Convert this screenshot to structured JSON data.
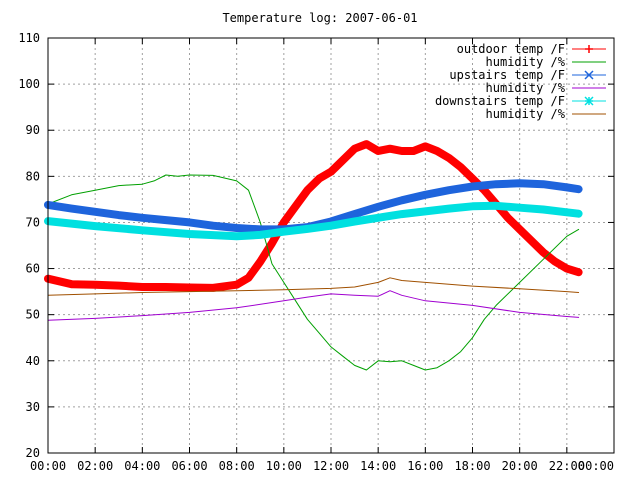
{
  "chart_data": {
    "type": "line",
    "title": "Temperature log: 2007-06-01",
    "xlabel": "",
    "ylabel": "",
    "xlim": [
      "00:00",
      "24:00"
    ],
    "ylim": [
      20,
      110
    ],
    "x_ticks": [
      "00:00",
      "02:00",
      "04:00",
      "06:00",
      "08:00",
      "10:00",
      "12:00",
      "14:00",
      "16:00",
      "18:00",
      "20:00",
      "22:00",
      "00:00"
    ],
    "y_ticks": [
      "20",
      "30",
      "40",
      "50",
      "60",
      "70",
      "80",
      "90",
      "100",
      "110"
    ],
    "grid": true,
    "legend_position": "top-right",
    "series": [
      {
        "name": "outdoor temp /F",
        "color": "#ff0000",
        "marker": "plus",
        "x": [
          "00:00",
          "01:00",
          "02:00",
          "03:00",
          "04:00",
          "05:00",
          "06:00",
          "07:00",
          "08:00",
          "08:30",
          "09:00",
          "09:30",
          "10:00",
          "10:30",
          "11:00",
          "11:30",
          "12:00",
          "12:30",
          "13:00",
          "13:30",
          "14:00",
          "14:30",
          "15:00",
          "15:30",
          "16:00",
          "16:30",
          "17:00",
          "17:30",
          "18:00",
          "18:30",
          "19:00",
          "19:30",
          "20:00",
          "20:30",
          "21:00",
          "21:30",
          "22:00",
          "22:30"
        ],
        "values": [
          57.8,
          56.6,
          56.5,
          56.3,
          56.0,
          56.0,
          55.9,
          55.8,
          56.5,
          58.0,
          61.5,
          65.5,
          70.0,
          73.5,
          77.0,
          79.5,
          81.0,
          83.5,
          86.0,
          87.0,
          85.5,
          86.0,
          85.5,
          85.5,
          86.5,
          85.5,
          84.0,
          82.0,
          79.5,
          77.0,
          74.0,
          71.0,
          68.5,
          66.0,
          63.5,
          61.5,
          60.0,
          59.2
        ]
      },
      {
        "name": "humidity /%",
        "color": "#00a000",
        "marker": "none",
        "x": [
          "00:00",
          "01:00",
          "02:00",
          "03:00",
          "04:00",
          "04:30",
          "05:00",
          "05:30",
          "06:00",
          "07:00",
          "08:00",
          "08:30",
          "09:00",
          "09:30",
          "10:00",
          "10:30",
          "11:00",
          "11:30",
          "12:00",
          "12:30",
          "13:00",
          "13:30",
          "14:00",
          "14:30",
          "15:00",
          "15:30",
          "16:00",
          "16:30",
          "17:00",
          "17:30",
          "18:00",
          "18:30",
          "19:00",
          "20:00",
          "21:00",
          "22:00",
          "22:30"
        ],
        "values": [
          74.0,
          76.0,
          77.0,
          78.0,
          78.3,
          79.0,
          80.3,
          80.0,
          80.3,
          80.2,
          79.0,
          77.0,
          70.0,
          61.0,
          57.0,
          53.0,
          49.0,
          46.0,
          43.0,
          41.0,
          39.0,
          38.0,
          40.0,
          39.8,
          40.0,
          39.0,
          38.0,
          38.5,
          40.0,
          42.0,
          45.0,
          49.0,
          52.0,
          57.0,
          62.0,
          67.0,
          68.5
        ]
      },
      {
        "name": "upstairs temp /F",
        "color": "#1e64dc",
        "marker": "cross",
        "x": [
          "00:00",
          "01:00",
          "02:00",
          "03:00",
          "04:00",
          "05:00",
          "06:00",
          "07:00",
          "08:00",
          "09:00",
          "10:00",
          "11:00",
          "12:00",
          "13:00",
          "14:00",
          "15:00",
          "16:00",
          "17:00",
          "18:00",
          "19:00",
          "20:00",
          "21:00",
          "22:00",
          "22:30"
        ],
        "values": [
          73.8,
          73.0,
          72.3,
          71.6,
          71.0,
          70.5,
          70.0,
          69.3,
          68.8,
          68.5,
          68.5,
          69.0,
          70.2,
          71.8,
          73.4,
          74.8,
          76.0,
          77.0,
          77.8,
          78.3,
          78.5,
          78.3,
          77.6,
          77.2
        ]
      },
      {
        "name": "humidity /%",
        "color": "#a000d0",
        "marker": "none",
        "x": [
          "00:00",
          "02:00",
          "04:00",
          "06:00",
          "08:00",
          "10:00",
          "11:00",
          "12:00",
          "13:00",
          "14:00",
          "14:30",
          "15:00",
          "16:00",
          "18:00",
          "20:00",
          "22:00",
          "22:30"
        ],
        "values": [
          48.8,
          49.2,
          49.8,
          50.5,
          51.5,
          53.0,
          53.8,
          54.5,
          54.2,
          54.0,
          55.2,
          54.2,
          53.0,
          52.0,
          50.5,
          49.6,
          49.4
        ]
      },
      {
        "name": "downstairs temp /F",
        "color": "#00e0e0",
        "marker": "star",
        "x": [
          "00:00",
          "02:00",
          "04:00",
          "06:00",
          "08:00",
          "09:00",
          "10:00",
          "11:00",
          "12:00",
          "13:00",
          "14:00",
          "15:00",
          "16:00",
          "17:00",
          "18:00",
          "19:00",
          "20:00",
          "21:00",
          "22:00",
          "22:30"
        ],
        "values": [
          70.3,
          69.2,
          68.3,
          67.5,
          67.0,
          67.3,
          68.0,
          68.6,
          69.3,
          70.2,
          71.0,
          71.8,
          72.4,
          73.0,
          73.5,
          73.6,
          73.2,
          72.8,
          72.2,
          71.9
        ]
      },
      {
        "name": "humidity /%",
        "color": "#a05000",
        "marker": "none",
        "x": [
          "00:00",
          "02:00",
          "04:00",
          "06:00",
          "08:00",
          "10:00",
          "12:00",
          "13:00",
          "14:00",
          "14:30",
          "15:00",
          "16:00",
          "18:00",
          "20:00",
          "22:00",
          "22:30"
        ],
        "values": [
          54.2,
          54.5,
          54.8,
          55.0,
          55.2,
          55.4,
          55.7,
          56.0,
          57.0,
          58.0,
          57.4,
          57.0,
          56.2,
          55.6,
          55.0,
          54.8
        ]
      }
    ]
  }
}
